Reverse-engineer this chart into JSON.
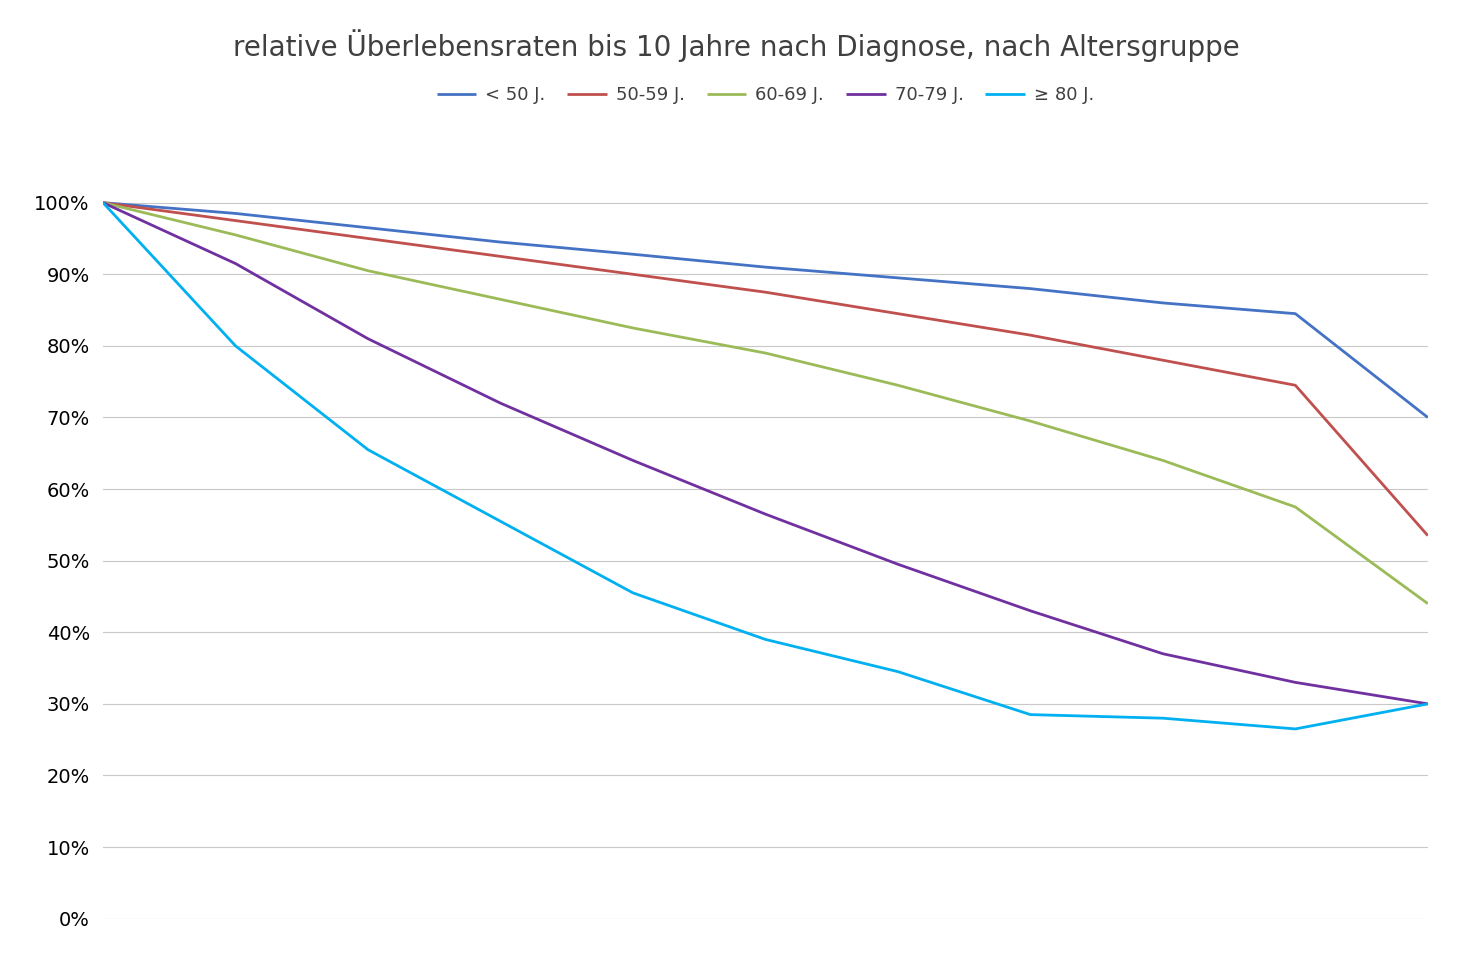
{
  "title": "relative Überlebensraten bis 10 Jahre nach Diagnose, nach Altersgruppe",
  "series": [
    {
      "label": "< 50 J.",
      "color": "#4472C4",
      "x": [
        0,
        1,
        2,
        3,
        4,
        5,
        6,
        7,
        8,
        9,
        10
      ],
      "y": [
        1.0,
        0.985,
        0.965,
        0.945,
        0.928,
        0.91,
        0.895,
        0.88,
        0.86,
        0.845,
        0.7
      ]
    },
    {
      "label": "50-59 J.",
      "color": "#C0504D",
      "x": [
        0,
        1,
        2,
        3,
        4,
        5,
        6,
        7,
        8,
        9,
        10
      ],
      "y": [
        1.0,
        0.975,
        0.95,
        0.925,
        0.9,
        0.875,
        0.845,
        0.815,
        0.78,
        0.745,
        0.535
      ]
    },
    {
      "label": "60-69 J.",
      "color": "#9BBB59",
      "x": [
        0,
        1,
        2,
        3,
        4,
        5,
        6,
        7,
        8,
        9,
        10
      ],
      "y": [
        1.0,
        0.955,
        0.905,
        0.865,
        0.825,
        0.79,
        0.745,
        0.695,
        0.64,
        0.575,
        0.44
      ]
    },
    {
      "label": "70-79 J.",
      "color": "#7030A0",
      "x": [
        0,
        1,
        2,
        3,
        4,
        5,
        6,
        7,
        8,
        9,
        10
      ],
      "y": [
        1.0,
        0.915,
        0.81,
        0.72,
        0.64,
        0.565,
        0.495,
        0.43,
        0.37,
        0.33,
        0.3
      ]
    },
    {
      "label": "≥ 80 J.",
      "color": "#00B0F0",
      "x": [
        0,
        1,
        2,
        3,
        4,
        5,
        6,
        7,
        8,
        9,
        10
      ],
      "y": [
        1.0,
        0.8,
        0.655,
        0.555,
        0.455,
        0.39,
        0.345,
        0.285,
        0.28,
        0.265,
        0.3
      ]
    }
  ],
  "xlim": [
    0,
    10
  ],
  "ylim": [
    0.0,
    1.04
  ],
  "yticks": [
    0.0,
    0.1,
    0.2,
    0.3,
    0.4,
    0.5,
    0.6,
    0.7,
    0.8,
    0.9,
    1.0
  ],
  "background_color": "#FFFFFF",
  "grid_color": "#C8C8C8",
  "title_fontsize": 20,
  "legend_fontsize": 13,
  "tick_fontsize": 14,
  "linewidth": 2.0
}
